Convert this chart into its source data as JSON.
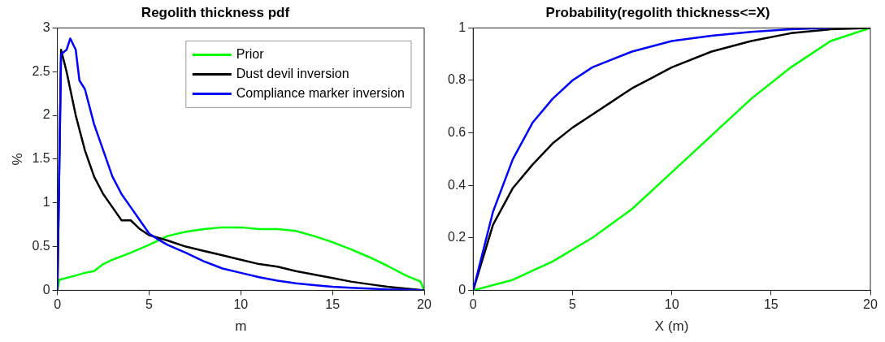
{
  "chart_data": [
    {
      "type": "line",
      "title": "Regolith thickness pdf",
      "xlabel": "m",
      "ylabel": "%",
      "xlim": [
        0,
        20
      ],
      "xticks": [
        0,
        5,
        10,
        15,
        20
      ],
      "ylim": [
        0,
        3
      ],
      "yticks": [
        0,
        0.5,
        1,
        1.5,
        2,
        2.5,
        3
      ],
      "grid": false,
      "legend": "top right",
      "marker": "none",
      "series": [
        {
          "name": "Prior",
          "color": "#00ff00",
          "x": [
            0,
            0.1,
            1,
            1.5,
            2,
            2.5,
            3,
            4,
            5,
            6,
            7,
            8,
            9,
            10,
            11,
            12,
            13,
            14,
            15,
            16,
            17,
            18,
            19,
            19.8,
            20
          ],
          "values": [
            0,
            0.12,
            0.17,
            0.2,
            0.22,
            0.3,
            0.35,
            0.43,
            0.52,
            0.62,
            0.67,
            0.7,
            0.72,
            0.72,
            0.7,
            0.7,
            0.68,
            0.62,
            0.55,
            0.47,
            0.38,
            0.28,
            0.17,
            0.1,
            0
          ]
        },
        {
          "name": "Dust devil inversion",
          "color": "#000000",
          "x": [
            0,
            0.2,
            0.5,
            1,
            1.5,
            2,
            2.5,
            3,
            3.5,
            4,
            4.5,
            5,
            6,
            7,
            8,
            9,
            10,
            11,
            12,
            13,
            14,
            15,
            16,
            17,
            18,
            19,
            20
          ],
          "values": [
            0,
            2.75,
            2.5,
            2.0,
            1.6,
            1.3,
            1.1,
            0.95,
            0.8,
            0.8,
            0.7,
            0.63,
            0.57,
            0.5,
            0.45,
            0.4,
            0.35,
            0.3,
            0.27,
            0.22,
            0.18,
            0.14,
            0.1,
            0.07,
            0.04,
            0.02,
            0
          ]
        },
        {
          "name": "Compliance marker inversion",
          "color": "#0000ff",
          "x": [
            0,
            0.2,
            0.5,
            0.7,
            1,
            1.2,
            1.5,
            2,
            2.5,
            3,
            3.5,
            4,
            4.5,
            5,
            5.5,
            6,
            7,
            8,
            9,
            10,
            11,
            12,
            13,
            14,
            15,
            16,
            17,
            18,
            20
          ],
          "values": [
            0,
            2.7,
            2.75,
            2.88,
            2.75,
            2.4,
            2.3,
            1.9,
            1.6,
            1.3,
            1.1,
            0.95,
            0.8,
            0.65,
            0.58,
            0.52,
            0.43,
            0.33,
            0.25,
            0.2,
            0.15,
            0.11,
            0.08,
            0.06,
            0.04,
            0.03,
            0.02,
            0.01,
            0
          ]
        }
      ]
    },
    {
      "type": "line",
      "title": "Probability(regolith thickness<=X)",
      "xlabel": "X (m)",
      "xlim": [
        0,
        20
      ],
      "xticks": [
        0,
        5,
        10,
        15,
        20
      ],
      "ylim": [
        0,
        1
      ],
      "yticks": [
        0,
        0.2,
        0.4,
        0.6,
        0.8,
        1
      ],
      "grid": false,
      "marker": "none",
      "series": [
        {
          "color": "#00ff00",
          "x": [
            0,
            2,
            4,
            6,
            8,
            10,
            12,
            14,
            16,
            18,
            20
          ],
          "values": [
            0,
            0.04,
            0.11,
            0.2,
            0.31,
            0.45,
            0.59,
            0.73,
            0.85,
            0.95,
            1
          ]
        },
        {
          "color": "#000000",
          "x": [
            0,
            1,
            2,
            3,
            4,
            5,
            6,
            7,
            8,
            9,
            10,
            12,
            14,
            16,
            18,
            20
          ],
          "values": [
            0,
            0.25,
            0.39,
            0.48,
            0.56,
            0.62,
            0.67,
            0.72,
            0.77,
            0.81,
            0.85,
            0.91,
            0.95,
            0.98,
            0.995,
            1
          ]
        },
        {
          "color": "#0000ff",
          "x": [
            0,
            1,
            2,
            3,
            4,
            5,
            6,
            8,
            10,
            12,
            14,
            16,
            18
          ],
          "values": [
            0,
            0.3,
            0.5,
            0.64,
            0.73,
            0.8,
            0.85,
            0.91,
            0.95,
            0.97,
            0.985,
            0.995,
            1
          ]
        }
      ]
    }
  ]
}
